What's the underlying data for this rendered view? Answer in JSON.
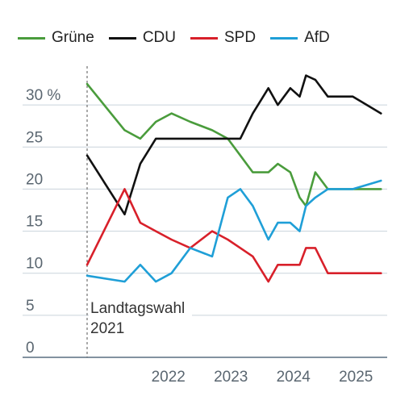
{
  "chart_data": {
    "type": "line",
    "title": "",
    "xlabel": "",
    "ylabel": "",
    "ylim": [
      0,
      35
    ],
    "xlim": [
      2021.2,
      2026.0
    ],
    "y_ticks": [
      0,
      5,
      10,
      15,
      20,
      25,
      30
    ],
    "y_tick_labels": [
      "0",
      "5",
      "10",
      "15",
      "20",
      "25",
      "30 %"
    ],
    "x_ticks": [
      2022,
      2023,
      2024,
      2025
    ],
    "x_tick_labels": [
      "2022",
      "2023",
      "2024",
      "2025"
    ],
    "grid": "horizontal",
    "legend_position": "top",
    "annotation": {
      "x": 2021.2,
      "line1": "Landtagswahl",
      "line2": "2021"
    },
    "series": [
      {
        "name": "Grüne",
        "color": "#4a9c3c",
        "x": [
          2021.2,
          2021.8,
          2022.05,
          2022.3,
          2022.55,
          2022.85,
          2023.2,
          2023.45,
          2023.65,
          2023.85,
          2024.1,
          2024.25,
          2024.45,
          2024.6,
          2024.7,
          2024.85,
          2025.05,
          2025.45,
          2025.9
        ],
        "values": [
          32.5,
          27,
          26,
          28,
          29,
          28,
          27,
          26,
          24,
          22,
          22,
          23,
          22,
          19,
          18,
          22,
          20,
          20,
          20
        ]
      },
      {
        "name": "CDU",
        "color": "#111111",
        "x": [
          2021.2,
          2021.8,
          2022.05,
          2022.3,
          2022.55,
          2022.85,
          2023.2,
          2023.45,
          2023.65,
          2023.85,
          2024.1,
          2024.25,
          2024.45,
          2024.6,
          2024.7,
          2024.85,
          2025.05,
          2025.45,
          2025.9
        ],
        "values": [
          24,
          17,
          23,
          26,
          26,
          26,
          26,
          26,
          26,
          29,
          32,
          30,
          32,
          31,
          33.5,
          33,
          31,
          31,
          29
        ]
      },
      {
        "name": "SPD",
        "color": "#d8202a",
        "x": [
          2021.2,
          2021.8,
          2022.05,
          2022.3,
          2022.55,
          2022.85,
          2023.2,
          2023.45,
          2023.65,
          2023.85,
          2024.1,
          2024.25,
          2024.45,
          2024.6,
          2024.7,
          2024.85,
          2025.05,
          2025.45,
          2025.9
        ],
        "values": [
          11,
          20,
          16,
          15,
          14,
          13,
          15,
          14,
          13,
          12,
          9,
          11,
          11,
          11,
          13,
          13,
          10,
          10,
          10
        ]
      },
      {
        "name": "AfD",
        "color": "#1f9fd7",
        "x": [
          2021.2,
          2021.8,
          2022.05,
          2022.3,
          2022.55,
          2022.85,
          2023.2,
          2023.45,
          2023.65,
          2023.85,
          2024.1,
          2024.25,
          2024.45,
          2024.6,
          2024.7,
          2024.85,
          2025.05,
          2025.45,
          2025.9
        ],
        "values": [
          9.7,
          9,
          11,
          9,
          10,
          13,
          12,
          19,
          20,
          18,
          14,
          16,
          16,
          15,
          18,
          19,
          20,
          20,
          21
        ]
      }
    ]
  }
}
